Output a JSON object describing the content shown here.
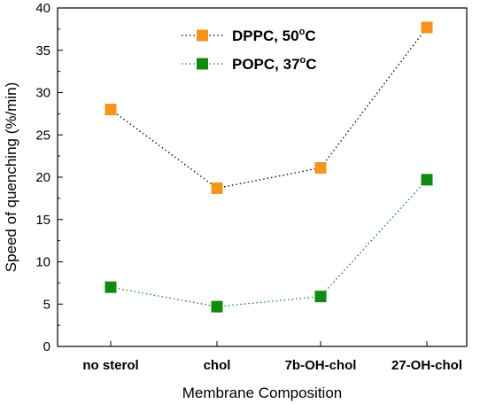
{
  "chart_data": {
    "type": "line",
    "xlabel": "Membrane Composition",
    "ylabel": "Speed of quenching (%/min)",
    "categories": [
      "no sterol",
      "chol",
      "7b-OH-chol",
      "27-OH-chol"
    ],
    "ylim": [
      0,
      40
    ],
    "yticks": [
      "0",
      "5",
      "10",
      "15",
      "20",
      "25",
      "30",
      "35",
      "40"
    ],
    "legend_position": "top-center",
    "grid": false,
    "series": [
      {
        "name": "DPPC, 50",
        "name_sup": "o",
        "name_suffix": "C",
        "color": "#f7941d",
        "marker": "square",
        "line_style": "dotted",
        "line_color": "#000000",
        "values": [
          28.0,
          18.7,
          21.1,
          37.7
        ]
      },
      {
        "name": "POPC, 37",
        "name_sup": "o",
        "name_suffix": "C",
        "color": "#118a11",
        "marker": "square",
        "line_style": "dotted",
        "line_color": "#118a11",
        "values": [
          7.0,
          4.7,
          5.9,
          19.7
        ]
      }
    ]
  }
}
